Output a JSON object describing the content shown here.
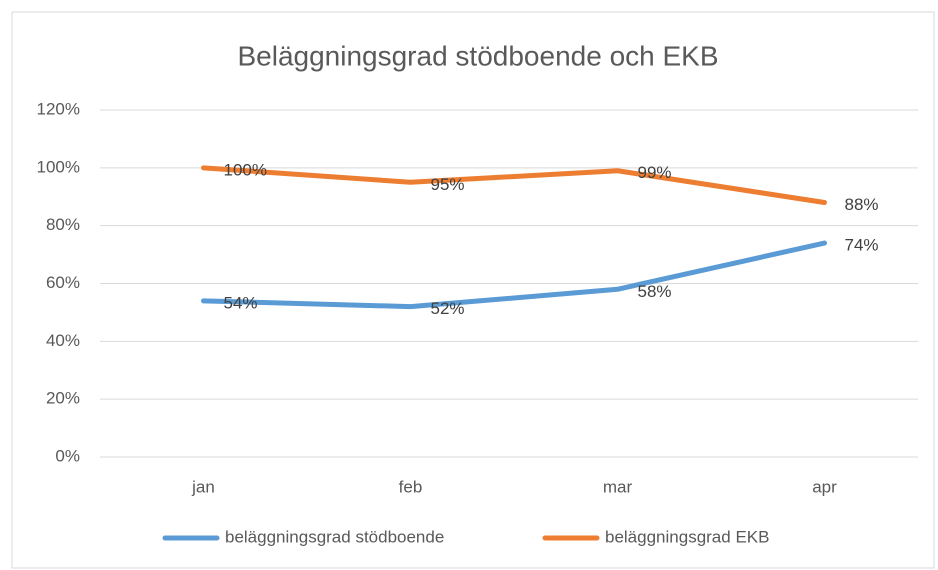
{
  "chart_data": {
    "type": "line",
    "title": "Beläggningsgrad stödboende och EKB",
    "categories": [
      "jan",
      "feb",
      "mar",
      "apr"
    ],
    "series": [
      {
        "name": "beläggningsgrad stödboende",
        "color": "#5b9bd5",
        "values": [
          54,
          52,
          58,
          74
        ],
        "value_labels": [
          "54%",
          "52%",
          "58%",
          "74%"
        ]
      },
      {
        "name": "beläggningsgrad EKB",
        "color": "#ed7d31",
        "values": [
          100,
          95,
          99,
          88
        ],
        "value_labels": [
          "100%",
          "95%",
          "99%",
          "88%"
        ]
      }
    ],
    "ylim": [
      0,
      120
    ],
    "yticks": [
      {
        "value": 0,
        "label": "0%"
      },
      {
        "value": 20,
        "label": "20%"
      },
      {
        "value": 40,
        "label": "40%"
      },
      {
        "value": 60,
        "label": "60%"
      },
      {
        "value": 80,
        "label": "80%"
      },
      {
        "value": 100,
        "label": "100%"
      },
      {
        "value": 120,
        "label": "120%"
      }
    ],
    "grid": true,
    "legend": "bottom"
  }
}
